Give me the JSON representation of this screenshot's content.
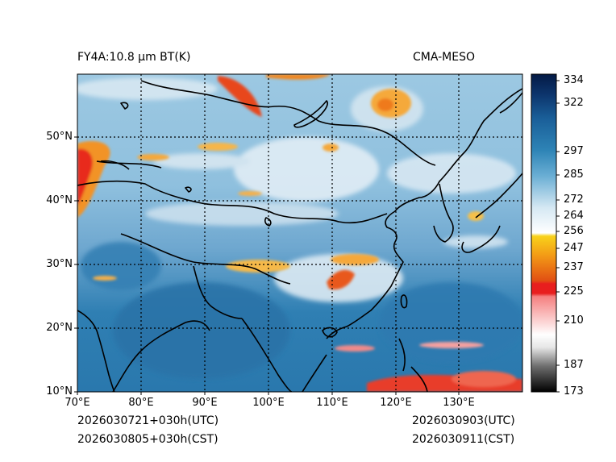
{
  "title_left": "FY4A:10.8 µm BT(K)",
  "title_right": "CMA-MESO",
  "footer": {
    "init_utc": "2026030721+030h(UTC)",
    "init_cst": "2026030805+030h(CST)",
    "valid_utc": "2026030903(UTC)",
    "valid_cst": "2026030911(CST)"
  },
  "map": {
    "lat_labels": [
      "10°N",
      "20°N",
      "30°N",
      "40°N",
      "50°N"
    ],
    "lon_labels": [
      "70°E",
      "80°E",
      "90°E",
      "100°E",
      "110°E",
      "120°E",
      "130°E"
    ],
    "lon_range": [
      70,
      140
    ],
    "lat_range": [
      10,
      60
    ]
  },
  "colorbar": {
    "labels": [
      "334",
      "322",
      "297",
      "285",
      "272",
      "264",
      "256",
      "247",
      "237",
      "225",
      "210",
      "187",
      "173"
    ]
  },
  "colors": {
    "ocean": "#3d86b5",
    "cloud": "#d4e6f1",
    "cold_cloud": "#f08a1e",
    "very_cold": "#e82a1e"
  }
}
